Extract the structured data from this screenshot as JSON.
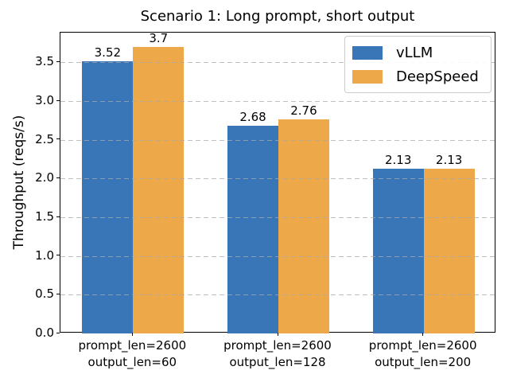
{
  "chart_data": {
    "type": "bar",
    "title": "Scenario 1: Long prompt, short output",
    "xlabel": "",
    "ylabel": "Throughput (reqs/s)",
    "categories": [
      [
        "prompt_len=2600",
        "output_len=60"
      ],
      [
        "prompt_len=2600",
        "output_len=128"
      ],
      [
        "prompt_len=2600",
        "output_len=200"
      ]
    ],
    "series": [
      {
        "name": "vLLM",
        "color": "#3876b7",
        "values": [
          3.52,
          2.68,
          2.13
        ],
        "labels": [
          "3.52",
          "2.68",
          "2.13"
        ]
      },
      {
        "name": "DeepSpeed",
        "color": "#eda84a",
        "values": [
          3.7,
          2.76,
          2.13
        ],
        "labels": [
          "3.7",
          "2.76",
          "2.13"
        ]
      }
    ],
    "yticks": [
      "0.0",
      "0.5",
      "1.0",
      "1.5",
      "2.0",
      "2.5",
      "3.0",
      "3.5"
    ],
    "ylim": [
      0,
      3.885
    ],
    "grid": "horizontal-dashed",
    "legend_position": "upper right",
    "bar_width_fraction": 0.35
  }
}
